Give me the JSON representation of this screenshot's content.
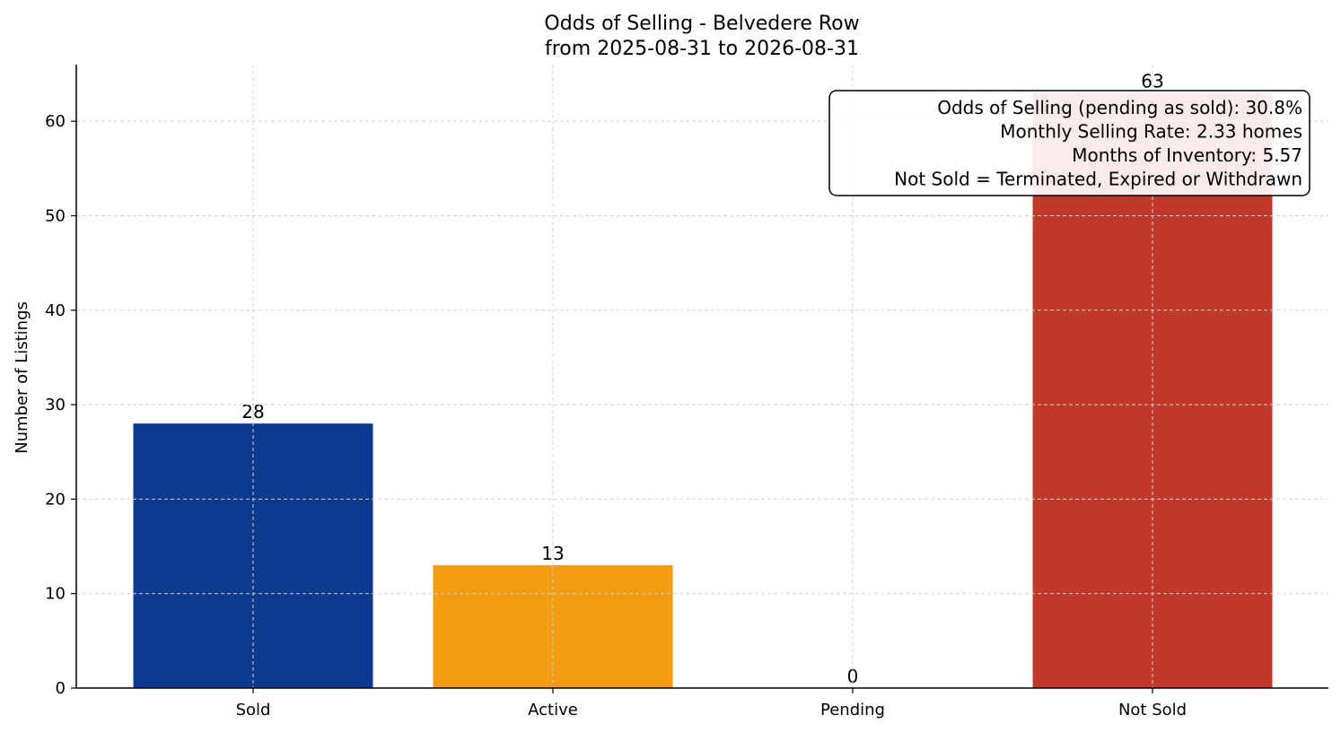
{
  "chart_data": {
    "type": "bar",
    "title": "Odds of Selling - Belvedere Row",
    "subtitle": "from 2025-08-31 to 2026-08-31",
    "xlabel": "",
    "ylabel": "Number of Listings",
    "categories": [
      "Sold",
      "Active",
      "Pending",
      "Not Sold"
    ],
    "values": [
      28,
      13,
      0,
      63
    ],
    "colors": [
      "#0b3a8f",
      "#f39c12",
      "#8e44ad",
      "#c0392b"
    ],
    "ylim": [
      0,
      66
    ],
    "yticks": [
      0,
      10,
      20,
      30,
      40,
      50,
      60
    ],
    "grid": true,
    "annotation": {
      "lines": [
        "Odds of Selling (pending as sold): 30.8%",
        "Monthly Selling Rate: 2.33 homes",
        "Months of Inventory: 5.57",
        "Not Sold = Terminated, Expired or Withdrawn"
      ],
      "position": "top-right"
    }
  }
}
